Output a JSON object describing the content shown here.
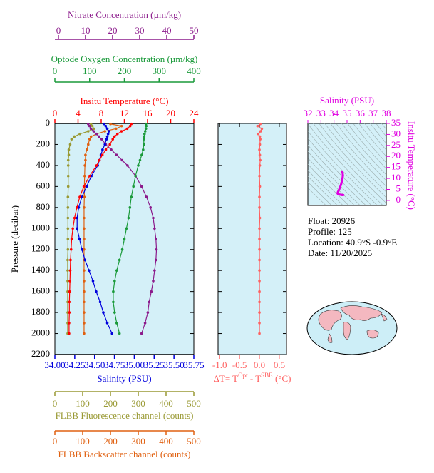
{
  "chart_data": [
    {
      "type": "profile",
      "y_label": "Pressure (decibar)",
      "y": [
        5,
        25,
        50,
        75,
        100,
        125,
        150,
        200,
        250,
        300,
        350,
        400,
        500,
        600,
        700,
        800,
        900,
        1000,
        1100,
        1200,
        1300,
        1400,
        1500,
        1600,
        1700,
        1800,
        1900,
        2000
      ],
      "ylim": [
        0,
        2200
      ],
      "yticks": [
        0,
        200,
        400,
        600,
        800,
        1000,
        1200,
        1400,
        1600,
        1800,
        2000,
        2200
      ],
      "axes": [
        {
          "title": "Nitrate Concentration (µm/kg)",
          "color": "#8b1a8b",
          "xlim": [
            -1.3,
            50
          ],
          "xticks": [
            0,
            10,
            20,
            30,
            40,
            50
          ],
          "values": [
            11,
            11.5,
            12,
            13,
            14,
            15,
            16,
            17.5,
            19.5,
            21.5,
            23.5,
            25.5,
            28.5,
            30.7,
            32.5,
            34,
            35,
            35.5,
            36,
            36.2,
            36,
            35.5,
            35,
            34.3,
            33.5,
            33,
            32,
            30.7
          ]
        },
        {
          "title": "Optode Oxygen Concentration (µm/kg)",
          "color": "#1a9a3a",
          "xlim": [
            0,
            400
          ],
          "xticks": [
            0,
            100,
            200,
            300,
            400
          ],
          "values": [
            262,
            263,
            262,
            260,
            258,
            257,
            256,
            256,
            254,
            250,
            245,
            240,
            232,
            226,
            220,
            216,
            212,
            206,
            200,
            194,
            186,
            178,
            172,
            168,
            168,
            172,
            178,
            186
          ]
        },
        {
          "title": "Insitu Temperature (°C)",
          "color": "#ff0000",
          "xlim": [
            0,
            24
          ],
          "xticks": [
            0,
            4,
            8,
            12,
            16,
            20,
            24
          ],
          "values": [
            13.2,
            13.0,
            12.5,
            11.5,
            10.8,
            10.3,
            10.0,
            9.5,
            8.8,
            8.2,
            7.7,
            7.2,
            6.0,
            5.0,
            4.3,
            3.8,
            3.4,
            3.1,
            2.9,
            2.8,
            2.7,
            2.65,
            2.6,
            2.55,
            2.5,
            2.5,
            2.45,
            2.45
          ]
        },
        {
          "title": "Salinity (PSU)",
          "color": "#0000dd",
          "xlim": [
            34,
            35.75
          ],
          "xticks": [
            {
              "value": 34,
              "label": "34.00"
            },
            34.25,
            {
              "value": 34.5,
              "label": "34.50"
            },
            34.75,
            {
              "value": 35,
              "label": "35.00"
            },
            35.25,
            {
              "value": 35.5,
              "label": "35.50"
            },
            35.75
          ],
          "values": [
            34.62,
            34.64,
            34.66,
            34.68,
            34.67,
            34.66,
            34.65,
            34.63,
            34.6,
            34.58,
            34.56,
            34.54,
            34.46,
            34.4,
            34.34,
            34.3,
            34.28,
            34.28,
            34.31,
            34.34,
            34.38,
            34.43,
            34.48,
            34.52,
            34.57,
            34.61,
            34.66,
            34.72
          ]
        },
        {
          "title": "FLBB Fluorescence channel (counts)",
          "color": "#999933",
          "xlim": [
            0,
            500
          ],
          "xticks": [
            0,
            100,
            200,
            300,
            400,
            500
          ],
          "values": [
            130,
            135,
            140,
            120,
            90,
            70,
            60,
            55,
            50,
            50,
            48,
            48,
            48,
            48,
            47,
            47,
            47,
            47,
            47,
            47,
            46,
            46,
            46,
            46,
            46,
            46,
            46,
            46
          ]
        },
        {
          "title": "FLBB Backscatter channel (counts)",
          "color": "#e06010",
          "xlim": [
            0,
            500
          ],
          "xticks": [
            0,
            100,
            200,
            300,
            400,
            500
          ],
          "values": [
            200,
            240,
            220,
            180,
            150,
            130,
            125,
            120,
            115,
            110,
            110,
            108,
            107,
            106,
            106,
            105,
            105,
            105,
            105,
            105,
            105,
            105,
            105,
            105,
            105,
            105,
            105,
            105
          ]
        }
      ]
    },
    {
      "type": "profile-diff",
      "x_label_parts": [
        "ΔT= T",
        "Opt",
        " - T",
        "SBE",
        " (°C)"
      ],
      "color": "#ff6060",
      "y": [
        5,
        25,
        50,
        75,
        100,
        125,
        150,
        200,
        250,
        300,
        350,
        400,
        500,
        600,
        700,
        800,
        900,
        1000,
        1100,
        1200,
        1300,
        1400,
        1500,
        1600,
        1700,
        1800,
        1900,
        2000
      ],
      "values": [
        0.02,
        -0.05,
        0.06,
        0.03,
        -0.03,
        0.01,
        0.02,
        0.01,
        0.0,
        0.01,
        0.02,
        0.01,
        0.0,
        0.01,
        0.0,
        0.0,
        0.01,
        0.0,
        0.0,
        0.0,
        0.0,
        0.0,
        0.0,
        0.0,
        0.0,
        0.0,
        0.0,
        0.0
      ],
      "xlim": [
        -1.04,
        0.68
      ],
      "xticks": [
        {
          "value": -1,
          "label": "-1.0"
        },
        {
          "value": -0.5,
          "label": "-0.5"
        },
        {
          "value": 0,
          "label": "0.0"
        },
        0.5
      ],
      "ylim": [
        0,
        2200
      ]
    },
    {
      "type": "ts",
      "x_label": "Salinity (PSU)",
      "y_label": "Insitu Temperature (°C)",
      "color": "#e000e0",
      "xlim": [
        32,
        38
      ],
      "xticks": [
        32,
        33,
        34,
        35,
        36,
        37,
        38
      ],
      "ylim": [
        -2.3,
        35
      ],
      "yticks": [
        0,
        5,
        10,
        15,
        20,
        25,
        30,
        35
      ]
    }
  ],
  "info": {
    "lines": [
      "Float:  20926",
      "Profile:  125",
      "Location:  40.9°S  -0.9°E",
      "Date:  11/20/2025"
    ]
  }
}
